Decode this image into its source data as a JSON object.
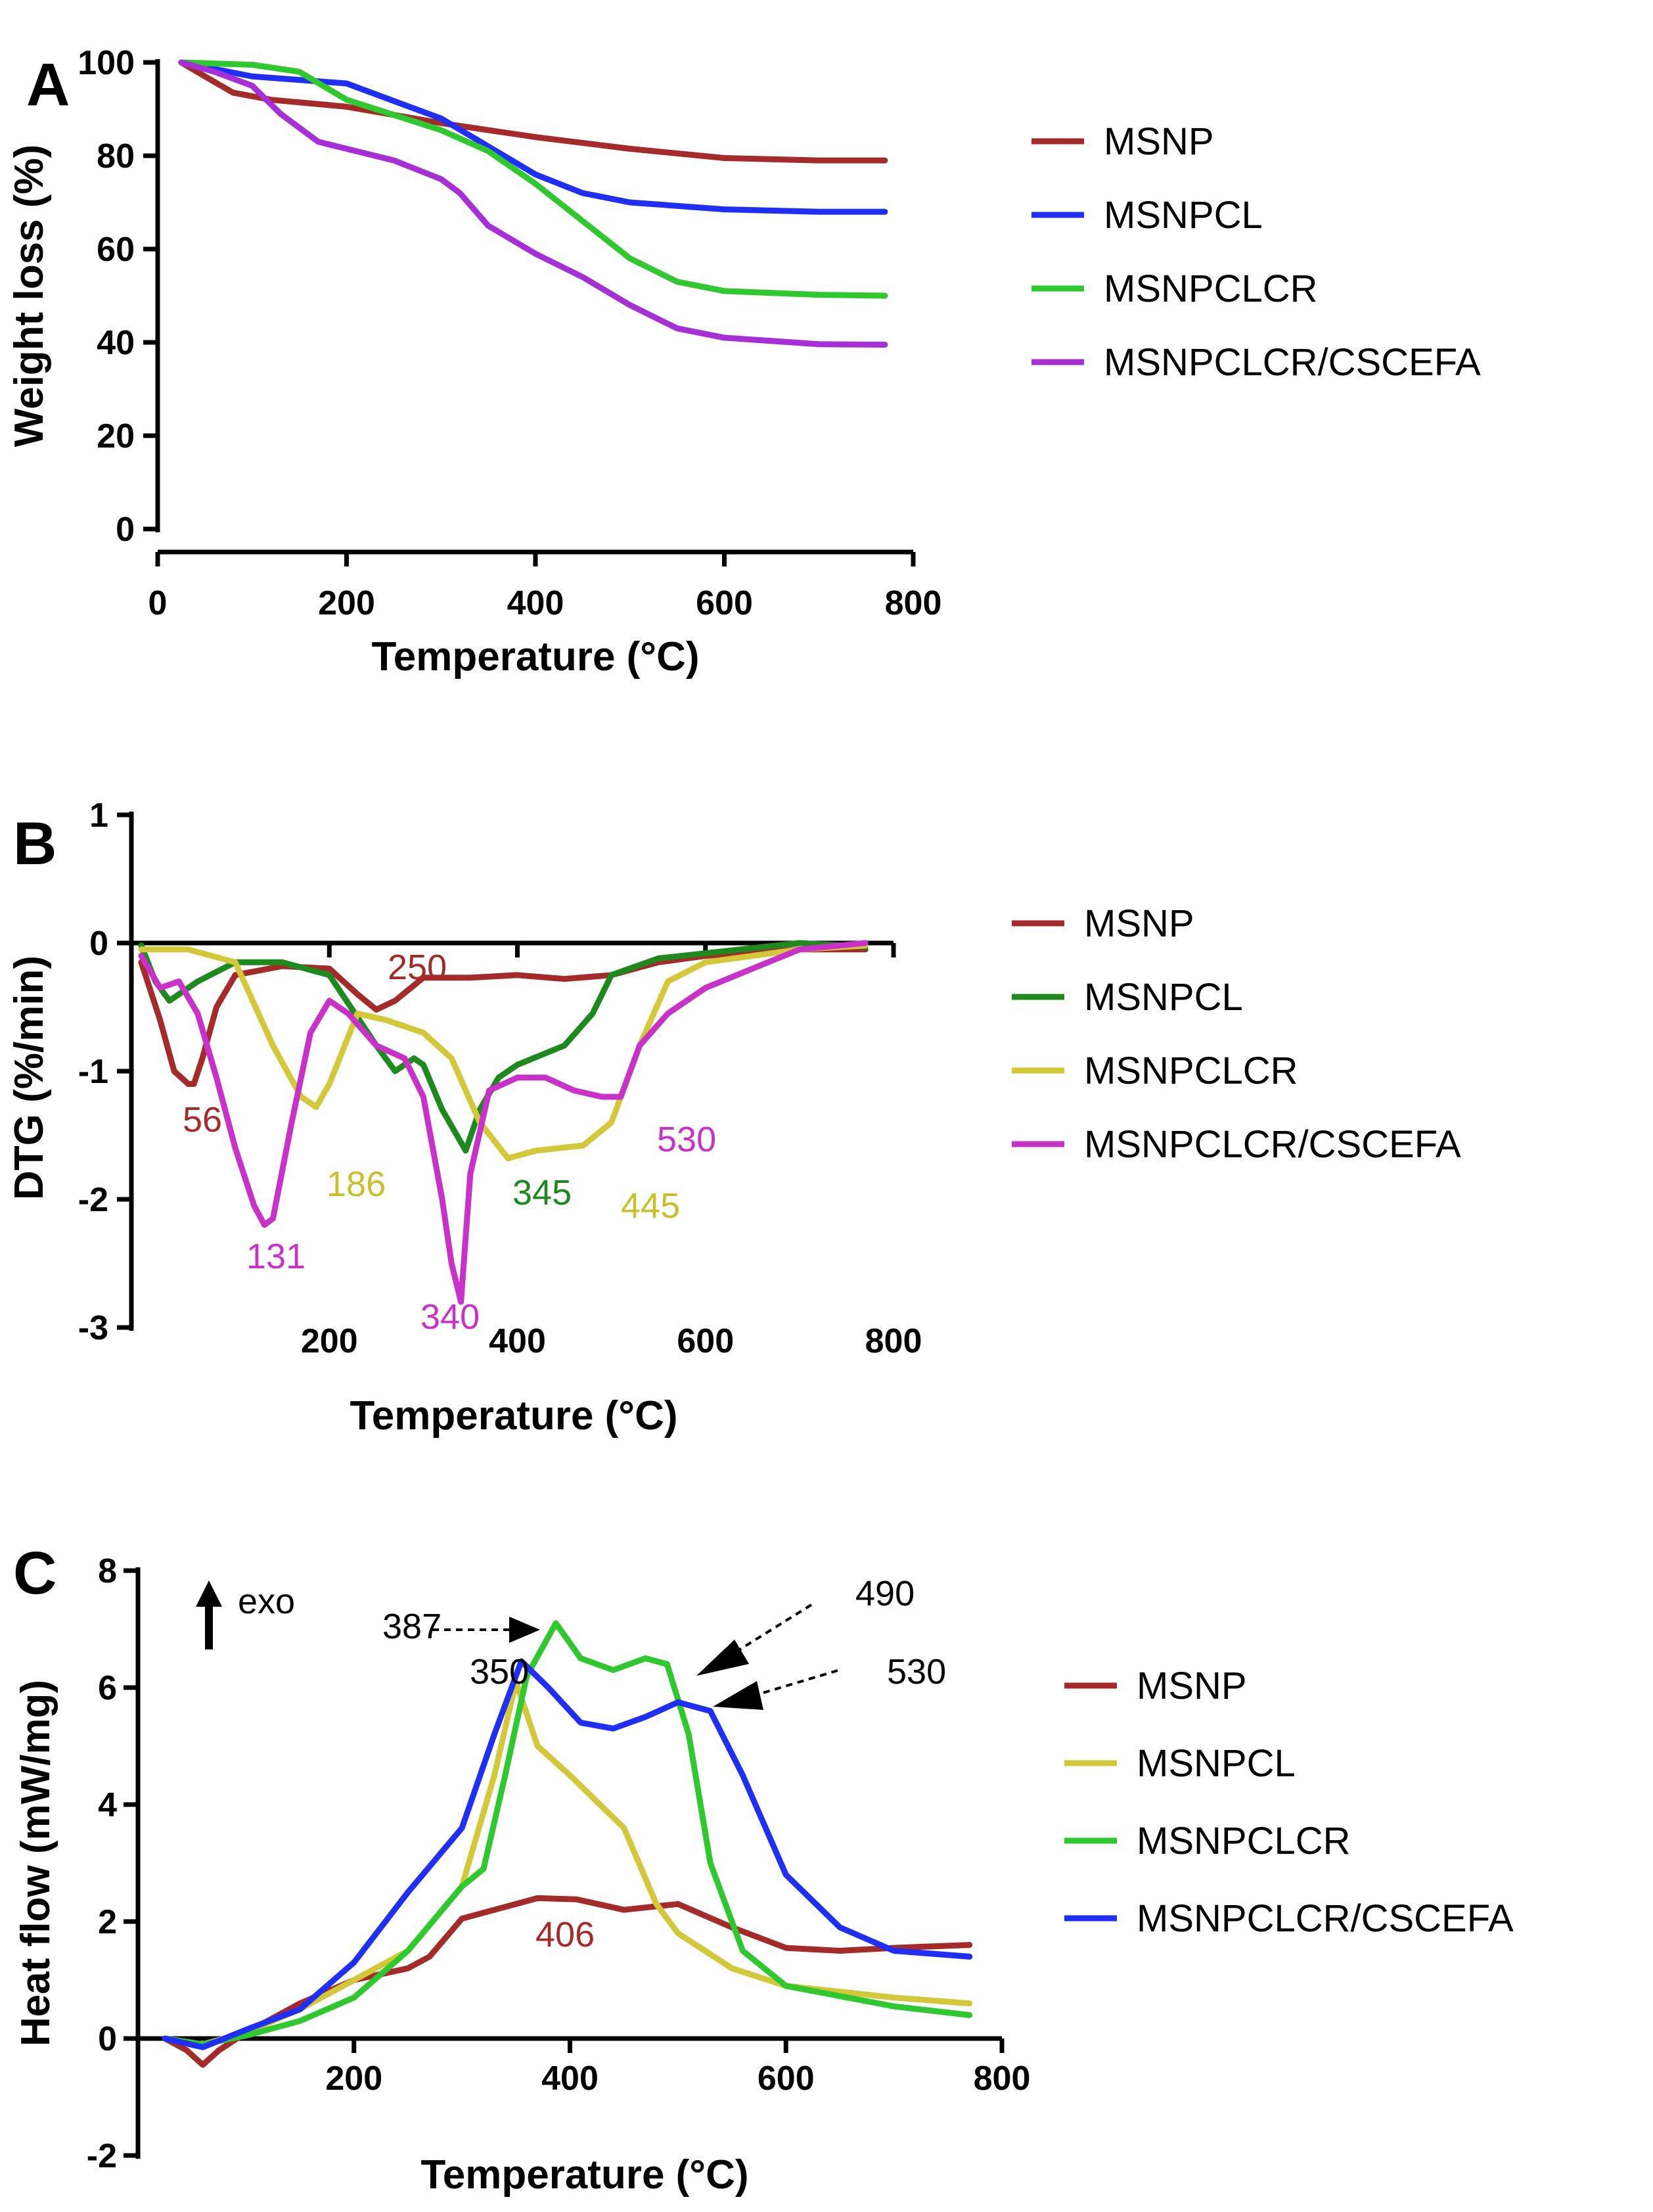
{
  "chart_data": [
    {
      "panel": "A",
      "type": "line",
      "xlabel": "Temperature (°C)",
      "ylabel": "Weight loss (%)",
      "xlim": [
        0,
        800
      ],
      "ylim": [
        0,
        100
      ],
      "xticks": [
        0,
        200,
        400,
        600,
        800
      ],
      "yticks": [
        0,
        20,
        40,
        60,
        80,
        100
      ],
      "legend_position": "right",
      "series": [
        {
          "name": "MSNP",
          "color": "#a52a2a",
          "x": [
            25,
            50,
            80,
            120,
            200,
            300,
            400,
            500,
            600,
            700,
            770
          ],
          "y": [
            100,
            97,
            93.5,
            92,
            90.5,
            87,
            84,
            81.5,
            79.5,
            79,
            79
          ]
        },
        {
          "name": "MSNPCL",
          "color": "#1f2ff5",
          "x": [
            25,
            100,
            200,
            300,
            350,
            400,
            450,
            500,
            600,
            700,
            770
          ],
          "y": [
            100,
            97,
            95.5,
            88,
            82,
            76,
            72,
            70,
            68.5,
            68,
            68
          ]
        },
        {
          "name": "MSNPCLCR",
          "color": "#2fc92f",
          "x": [
            25,
            100,
            150,
            200,
            300,
            350,
            400,
            450,
            500,
            550,
            600,
            700,
            770
          ],
          "y": [
            100,
            99.5,
            98,
            92,
            85.5,
            81,
            74,
            66,
            58,
            53,
            51,
            50.2,
            50
          ]
        },
        {
          "name": "MSNPCLCR/CSCEFA",
          "color": "#a62fd6",
          "x": [
            25,
            60,
            100,
            130,
            170,
            200,
            250,
            300,
            320,
            350,
            400,
            450,
            500,
            550,
            600,
            700,
            770
          ],
          "y": [
            100,
            98,
            95,
            89,
            83,
            81.5,
            79,
            75,
            72,
            65,
            59,
            54,
            48,
            43,
            41,
            39.6,
            39.5
          ]
        }
      ]
    },
    {
      "panel": "B",
      "type": "line",
      "xlabel": "Temperature (°C)",
      "ylabel": "DTG (%/min)",
      "xlim": [
        0,
        800
      ],
      "ylim": [
        -3,
        1
      ],
      "xticks": [
        200,
        400,
        600,
        800
      ],
      "yticks": [
        -3,
        -2,
        -1,
        0,
        1
      ],
      "legend_position": "right",
      "series": [
        {
          "name": "MSNP",
          "color": "#a52a2a",
          "x": [
            0,
            20,
            35,
            50,
            56,
            65,
            80,
            100,
            150,
            200,
            230,
            250,
            270,
            300,
            350,
            400,
            450,
            500,
            550,
            600,
            700,
            770
          ],
          "y": [
            -0.15,
            -0.6,
            -1.0,
            -1.1,
            -1.1,
            -0.9,
            -0.5,
            -0.25,
            -0.18,
            -0.2,
            -0.4,
            -0.52,
            -0.45,
            -0.27,
            -0.27,
            -0.25,
            -0.28,
            -0.25,
            -0.15,
            -0.1,
            -0.05,
            -0.05
          ]
        },
        {
          "name": "MSNPCL",
          "color": "#1e8a1e",
          "x": [
            0,
            15,
            30,
            60,
            100,
            150,
            200,
            250,
            270,
            290,
            300,
            320,
            345,
            360,
            380,
            400,
            450,
            480,
            500,
            550,
            600,
            700,
            770
          ],
          "y": [
            -0.02,
            -0.3,
            -0.45,
            -0.3,
            -0.15,
            -0.15,
            -0.25,
            -0.8,
            -1.0,
            -0.9,
            -0.95,
            -1.3,
            -1.62,
            -1.3,
            -1.05,
            -0.95,
            -0.8,
            -0.55,
            -0.25,
            -0.12,
            -0.08,
            0.0,
            -0.03
          ]
        },
        {
          "name": "MSNPCLCR",
          "color": "#d2c83a",
          "x": [
            0,
            50,
            100,
            140,
            170,
            186,
            200,
            230,
            260,
            300,
            330,
            360,
            390,
            420,
            445,
            470,
            500,
            530,
            560,
            600,
            700,
            770
          ],
          "y": [
            -0.05,
            -0.05,
            -0.15,
            -0.8,
            -1.2,
            -1.28,
            -1.1,
            -0.55,
            -0.6,
            -0.7,
            -0.9,
            -1.4,
            -1.68,
            -1.62,
            -1.6,
            -1.58,
            -1.4,
            -0.8,
            -0.3,
            -0.15,
            -0.05,
            -0.02
          ]
        },
        {
          "name": "MSNPCLCR/CSCEFA",
          "color": "#c832c8",
          "x": [
            0,
            20,
            40,
            60,
            80,
            100,
            120,
            131,
            140,
            160,
            180,
            200,
            220,
            250,
            280,
            300,
            320,
            330,
            340,
            350,
            370,
            400,
            430,
            460,
            490,
            510,
            530,
            560,
            600,
            650,
            700,
            770
          ],
          "y": [
            -0.1,
            -0.35,
            -0.3,
            -0.55,
            -1.05,
            -1.6,
            -2.05,
            -2.2,
            -2.15,
            -1.4,
            -0.7,
            -0.45,
            -0.55,
            -0.8,
            -0.9,
            -1.2,
            -2.0,
            -2.5,
            -2.8,
            -1.8,
            -1.15,
            -1.05,
            -1.05,
            -1.15,
            -1.2,
            -1.2,
            -0.8,
            -0.55,
            -0.35,
            -0.2,
            -0.05,
            0.0
          ]
        }
      ],
      "annotations": [
        {
          "text": "56",
          "color": "#a52a2a"
        },
        {
          "text": "250",
          "color": "#a52a2a"
        },
        {
          "text": "186",
          "color": "#c8c02a"
        },
        {
          "text": "131",
          "color": "#c832c8"
        },
        {
          "text": "340",
          "color": "#c832c8"
        },
        {
          "text": "345",
          "color": "#1e8a1e"
        },
        {
          "text": "445",
          "color": "#c8c02a"
        },
        {
          "text": "530",
          "color": "#c832c8"
        }
      ]
    },
    {
      "panel": "C",
      "type": "line",
      "xlabel": "Temperature (°C)",
      "ylabel": "Heat flow (mW/mg)",
      "xlim": [
        0,
        800
      ],
      "ylim": [
        -2,
        8
      ],
      "xticks": [
        200,
        400,
        600,
        800
      ],
      "yticks": [
        -2,
        0,
        2,
        4,
        6,
        8
      ],
      "legend_position": "right",
      "exo_label": "exo",
      "series": [
        {
          "name": "MSNP",
          "color": "#a52a2a",
          "x": [
            25,
            45,
            60,
            75,
            100,
            150,
            200,
            250,
            270,
            300,
            330,
            370,
            406,
            450,
            500,
            550,
            600,
            650,
            700,
            770
          ],
          "y": [
            0,
            -0.2,
            -0.45,
            -0.2,
            0.1,
            0.6,
            1.0,
            1.2,
            1.4,
            2.05,
            2.2,
            2.4,
            2.38,
            2.2,
            2.3,
            1.9,
            1.55,
            1.5,
            1.55,
            1.6
          ]
        },
        {
          "name": "MSNPCL",
          "color": "#d2c83a",
          "x": [
            25,
            60,
            100,
            150,
            200,
            250,
            300,
            330,
            350,
            370,
            400,
            450,
            480,
            500,
            550,
            600,
            700,
            770
          ],
          "y": [
            0,
            -0.1,
            0.1,
            0.5,
            1.0,
            1.5,
            2.6,
            4.5,
            6.1,
            5.0,
            4.5,
            3.6,
            2.3,
            1.8,
            1.2,
            0.9,
            0.7,
            0.6
          ]
        },
        {
          "name": "MSNPCLCR",
          "color": "#2fc92f",
          "x": [
            25,
            60,
            100,
            150,
            200,
            250,
            300,
            320,
            340,
            360,
            387,
            410,
            440,
            470,
            490,
            510,
            530,
            560,
            600,
            700,
            770
          ],
          "y": [
            0,
            -0.1,
            0.05,
            0.3,
            0.7,
            1.5,
            2.6,
            2.9,
            4.5,
            6.2,
            7.1,
            6.5,
            6.3,
            6.5,
            6.4,
            5.2,
            3.0,
            1.5,
            0.9,
            0.55,
            0.4
          ]
        },
        {
          "name": "MSNPCLCR/CSCEFA",
          "color": "#1f2ff5",
          "x": [
            25,
            60,
            100,
            150,
            200,
            250,
            300,
            330,
            355,
            380,
            410,
            440,
            470,
            500,
            530,
            560,
            600,
            650,
            700,
            770
          ],
          "y": [
            0,
            -0.15,
            0.15,
            0.5,
            1.3,
            2.5,
            3.6,
            5.2,
            6.45,
            6.0,
            5.4,
            5.3,
            5.5,
            5.75,
            5.6,
            4.5,
            2.8,
            1.9,
            1.5,
            1.4
          ]
        }
      ],
      "annotations": [
        {
          "text": "387",
          "color": "#000000"
        },
        {
          "text": "490",
          "color": "#000000"
        },
        {
          "text": "350",
          "color": "#000000"
        },
        {
          "text": "530",
          "color": "#000000"
        },
        {
          "text": "406",
          "color": "#a52a2a"
        }
      ]
    }
  ]
}
